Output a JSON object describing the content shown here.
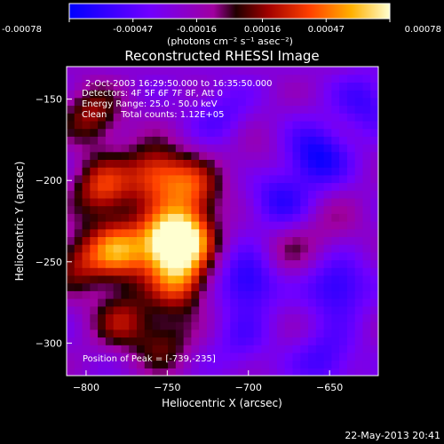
{
  "chart_data": {
    "type": "heatmap",
    "title": "Reconstructed RHESSI Image",
    "xlabel": "Heliocentric X (arcsec)",
    "ylabel": "Heliocentric Y (arcsec)",
    "xlim": [
      -812,
      -620
    ],
    "ylim": [
      -320,
      -130
    ],
    "x_ticks": [
      -800,
      -750,
      -700,
      -650
    ],
    "y_ticks": [
      -150,
      -200,
      -250,
      -300
    ],
    "colorbar": {
      "range": [
        -0.00078,
        0.00078
      ],
      "ticks": [
        "-0.00078",
        "-0.00047",
        "-0.00016",
        "0.00016",
        "0.00047",
        "0.00078"
      ],
      "tick_values": [
        -0.00078,
        -0.00047,
        -0.00016,
        0.00016,
        0.00047,
        0.00078
      ],
      "unit_label": "(photons cm⁻² s⁻¹ asec⁻²)"
    },
    "annotations": [
      "2-Oct-2003 16:29:50.000 to 16:35:50.000",
      "Detectors: 4F 5F 6F 7F 8F, Att 0",
      "Energy Range: 25.0 - 50.0 keV",
      "Clean     Total counts: 1.12E+05"
    ],
    "peak_label": "Position of Peak = [-739,-235]",
    "peak": [
      -739,
      -235
    ],
    "timestamp": "22-May-2013 20:41",
    "sources": [
      {
        "x": -796,
        "y": -160,
        "amp": 0.00045
      },
      {
        "x": -790,
        "y": -205,
        "amp": 0.00058
      },
      {
        "x": -780,
        "y": -243,
        "amp": 0.0007
      },
      {
        "x": -758,
        "y": -195,
        "amp": 0.0006
      },
      {
        "x": -752,
        "y": -238,
        "amp": 0.00072
      },
      {
        "x": -739,
        "y": -235,
        "amp": 0.00078
      },
      {
        "x": -735,
        "y": -205,
        "amp": 0.00055
      },
      {
        "x": -742,
        "y": -262,
        "amp": 0.00062
      },
      {
        "x": -778,
        "y": -285,
        "amp": 0.00042
      },
      {
        "x": -752,
        "y": -300,
        "amp": 0.00034
      },
      {
        "x": -805,
        "y": -250,
        "amp": 0.0004
      },
      {
        "x": -700,
        "y": -262,
        "amp": -0.00045
      },
      {
        "x": -682,
        "y": -212,
        "amp": -0.00035
      },
      {
        "x": -658,
        "y": -185,
        "amp": -0.00048
      },
      {
        "x": -645,
        "y": -265,
        "amp": -0.00042
      },
      {
        "x": -628,
        "y": -152,
        "amp": -0.0003
      },
      {
        "x": -652,
        "y": -310,
        "amp": -0.0003
      },
      {
        "x": -716,
        "y": -160,
        "amp": -0.00022
      },
      {
        "x": -705,
        "y": -300,
        "amp": -0.0002
      },
      {
        "x": -676,
        "y": -244,
        "amp": 0.0002
      },
      {
        "x": -648,
        "y": -228,
        "amp": 0.00015
      },
      {
        "x": -696,
        "y": -186,
        "amp": 0.00012
      }
    ]
  }
}
